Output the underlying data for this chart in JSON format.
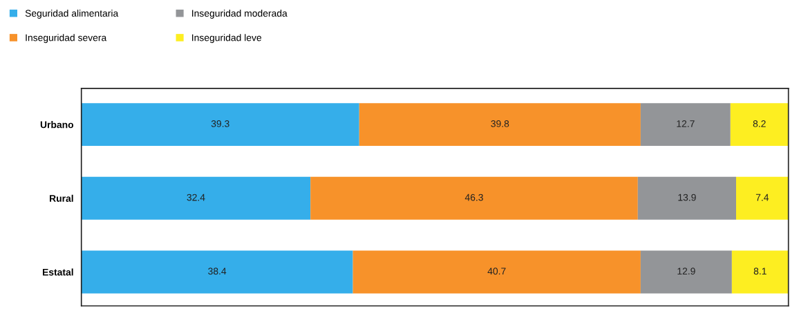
{
  "chart_data": {
    "type": "bar",
    "orientation": "horizontal",
    "stacked": true,
    "categories": [
      "Urbano",
      "Rural",
      "Estatal"
    ],
    "series": [
      {
        "name": "Seguridad alimentaria",
        "color": "#35aeea",
        "values": [
          39.3,
          32.4,
          38.4
        ]
      },
      {
        "name": "Inseguridad severa",
        "color": "#f7922a",
        "values": [
          39.8,
          46.3,
          40.7
        ]
      },
      {
        "name": "Inseguridad moderada",
        "color": "#939598",
        "values": [
          12.7,
          13.9,
          12.9
        ]
      },
      {
        "name": "Inseguridad leve",
        "color": "#fdee21",
        "values": [
          8.2,
          7.4,
          8.1
        ]
      }
    ],
    "xlim": [
      0,
      100
    ],
    "tick_labels": "y",
    "data_labels": true,
    "legend": "top left",
    "grid": false
  }
}
